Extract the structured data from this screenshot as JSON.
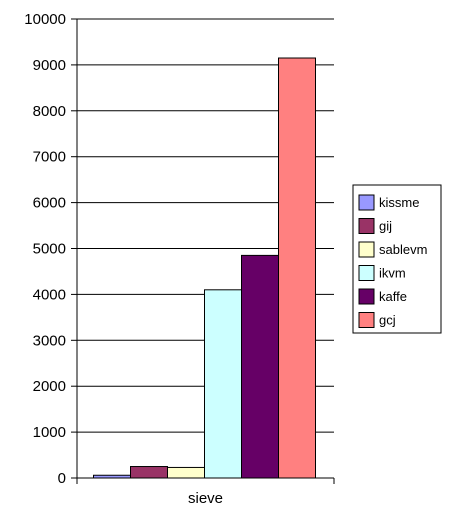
{
  "chart_data": {
    "type": "bar",
    "categories": [
      "sieve"
    ],
    "series": [
      {
        "name": "kissme",
        "values": [
          60
        ],
        "color": "#9999ff"
      },
      {
        "name": "gij",
        "values": [
          250
        ],
        "color": "#993366"
      },
      {
        "name": "sablevm",
        "values": [
          230
        ],
        "color": "#ffffcc"
      },
      {
        "name": "ikvm",
        "values": [
          4100
        ],
        "color": "#ccffff"
      },
      {
        "name": "kaffe",
        "values": [
          4850
        ],
        "color": "#660066"
      },
      {
        "name": "gcj",
        "values": [
          9150
        ],
        "color": "#ff8080"
      }
    ],
    "yticks": [
      0,
      1000,
      2000,
      3000,
      4000,
      5000,
      6000,
      7000,
      8000,
      9000,
      10000
    ],
    "ylim": [
      0,
      10000
    ],
    "grid": true,
    "legend": "right"
  }
}
